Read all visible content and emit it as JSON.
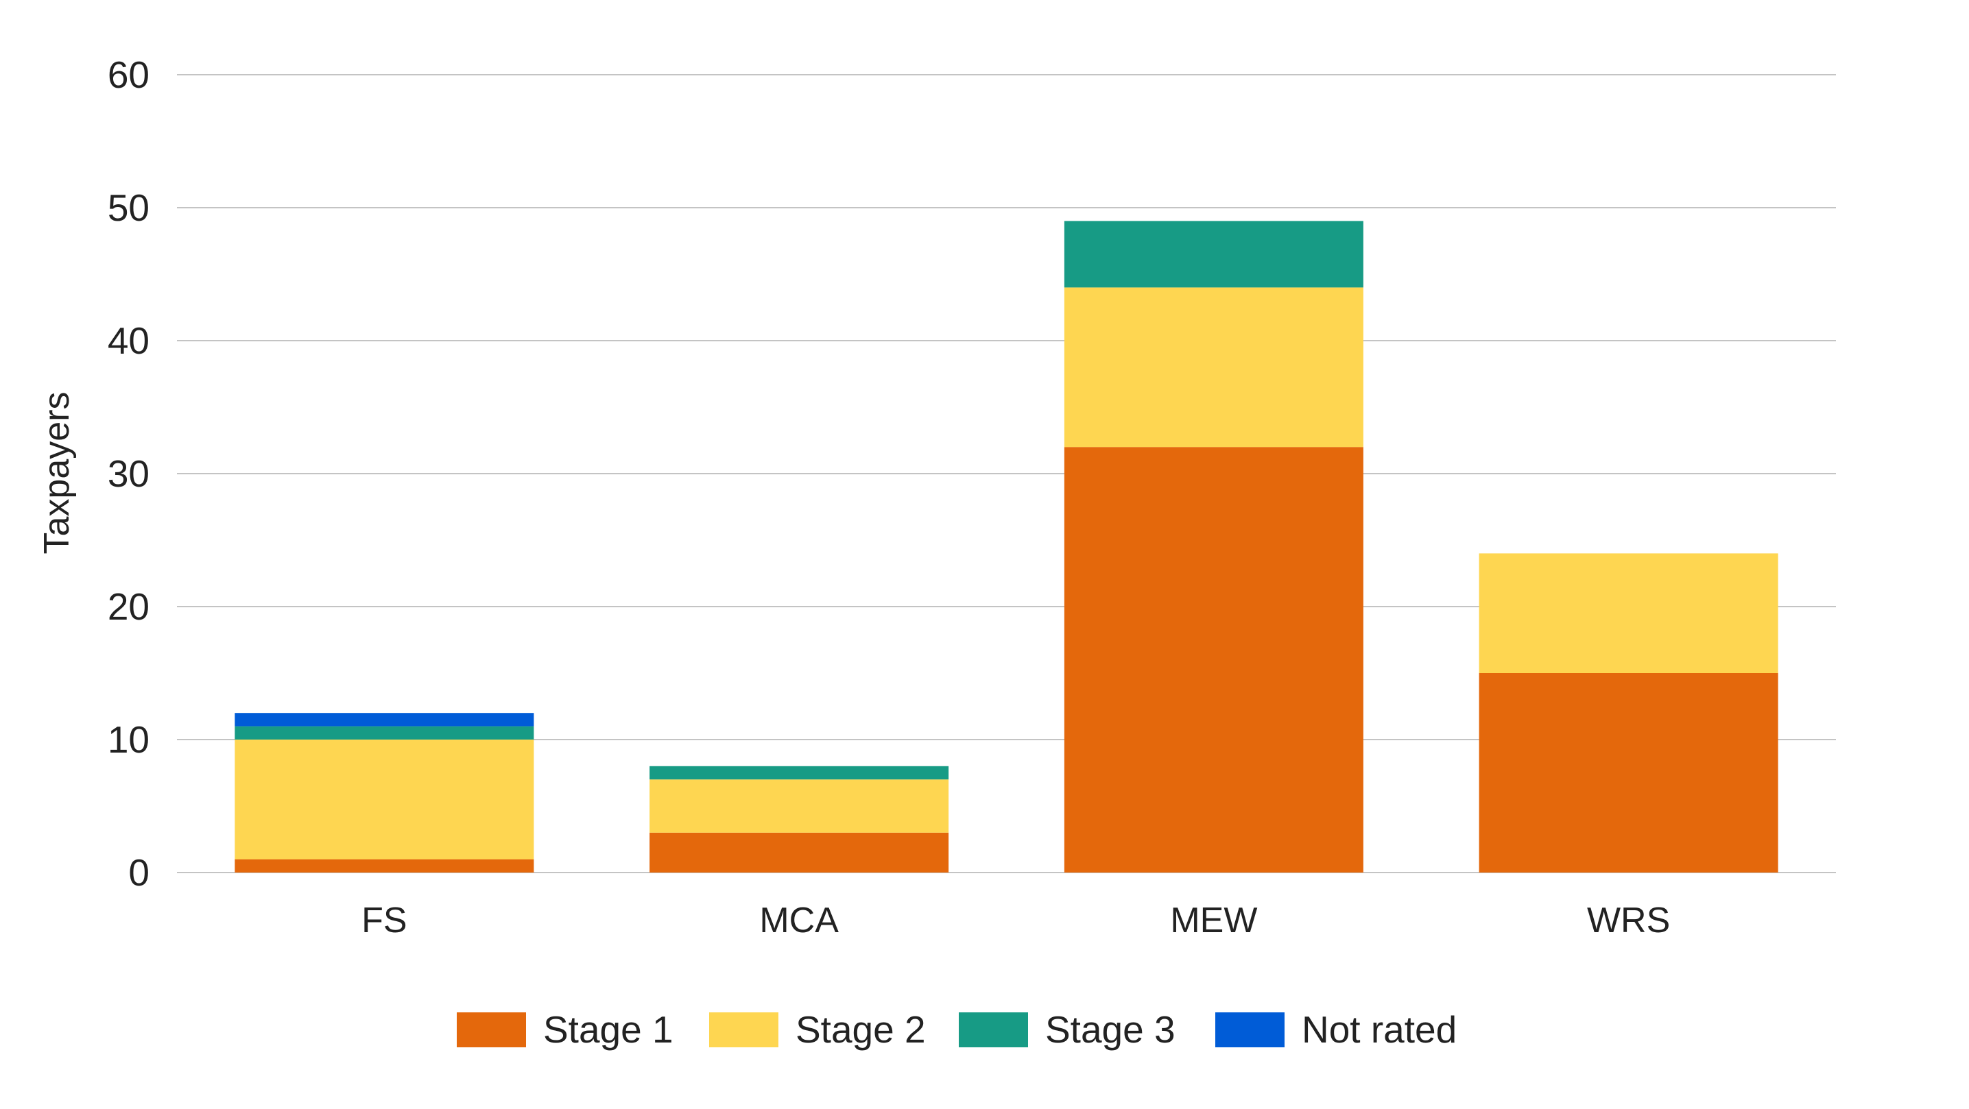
{
  "chart_data": {
    "type": "bar",
    "stacked": true,
    "title": "",
    "xlabel": "",
    "ylabel": "Taxpayers",
    "ylim": [
      0,
      60
    ],
    "yticks": [
      0,
      10,
      20,
      30,
      40,
      50,
      60
    ],
    "grid": true,
    "legend_position": "bottom-center",
    "categories": [
      "FS",
      "MCA",
      "MEW",
      "WRS"
    ],
    "series": [
      {
        "name": "Stage 1",
        "color": "#E4680C",
        "values": [
          1,
          3,
          32,
          15
        ]
      },
      {
        "name": "Stage 2",
        "color": "#FED651",
        "values": [
          9,
          4,
          12,
          9
        ]
      },
      {
        "name": "Stage 3",
        "color": "#179B85",
        "values": [
          1,
          1,
          5,
          0
        ]
      },
      {
        "name": "Not rated",
        "color": "#005CD7",
        "values": [
          1,
          0,
          0,
          0
        ]
      }
    ]
  }
}
